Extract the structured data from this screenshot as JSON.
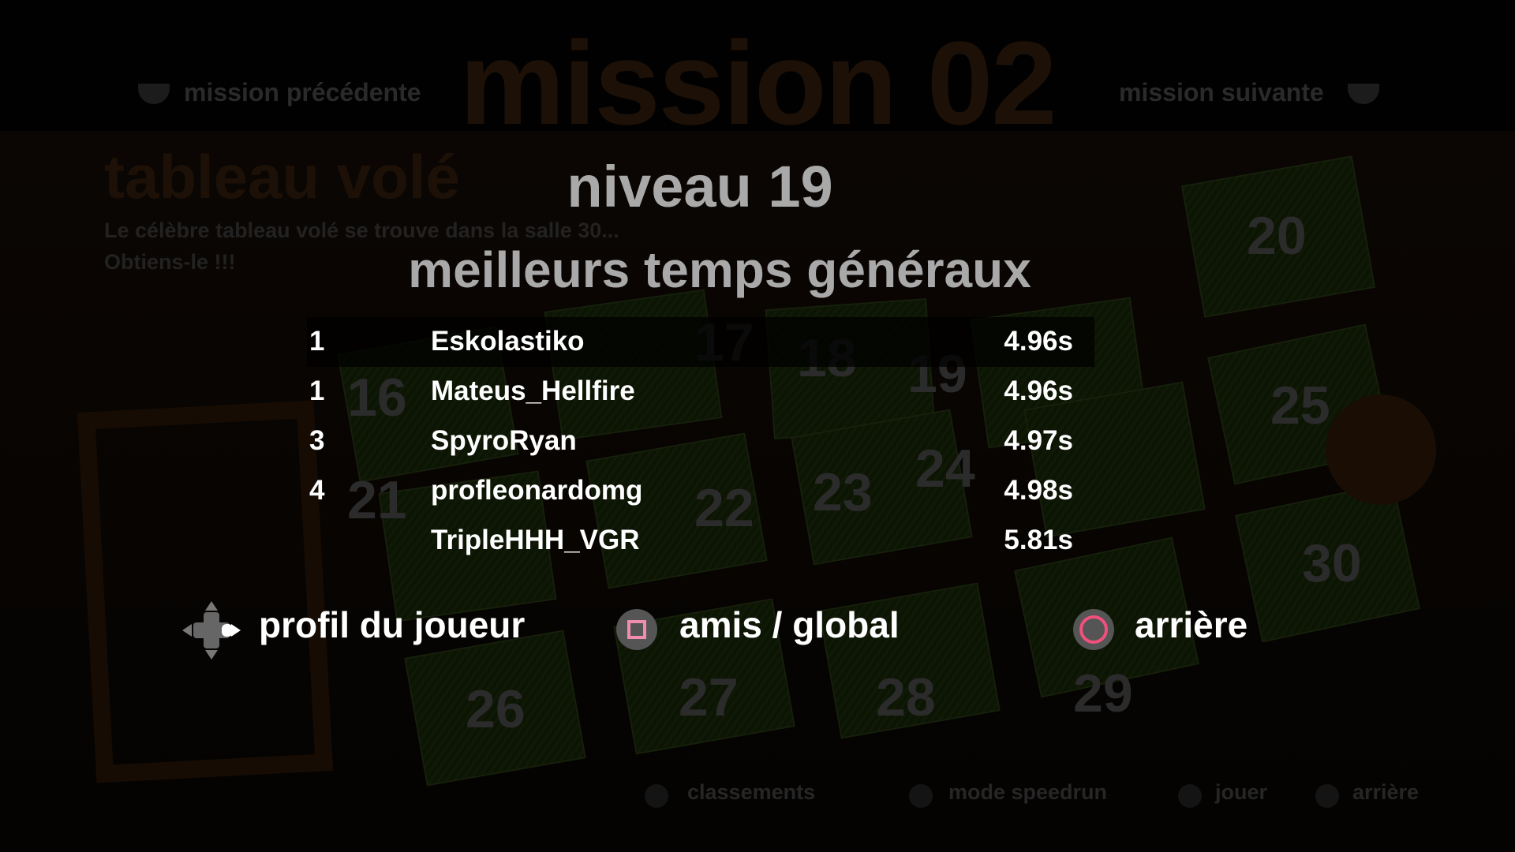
{
  "header": {
    "mission_title": "mission 02",
    "prev_label": "mission précédente",
    "next_label": "mission suivante"
  },
  "mission": {
    "name": "tableau volé",
    "description_line1": "Le célèbre tableau volé se trouve dans la salle 30...",
    "description_line2": "Obtiens-le !!!"
  },
  "levels": [
    "16",
    "17",
    "18",
    "19",
    "20",
    "21",
    "22",
    "23",
    "24",
    "25",
    "26",
    "27",
    "28",
    "29",
    "30"
  ],
  "leaderboard": {
    "title": "niveau 19",
    "subtitle": "meilleurs temps généraux",
    "rows": [
      {
        "rank": "1",
        "name": "Eskolastiko",
        "time": "4.96s",
        "selected": true
      },
      {
        "rank": "1",
        "name": "Mateus_Hellfire",
        "time": "4.96s"
      },
      {
        "rank": "3",
        "name": "SpyroRyan",
        "time": "4.97s"
      },
      {
        "rank": "4",
        "name": "profleonardomg",
        "time": "4.98s"
      },
      {
        "rank": "",
        "name": "TripleHHH_VGR",
        "time": "5.81s"
      }
    ]
  },
  "controls": {
    "profile": "profil du joueur",
    "friends_global": "amis / global",
    "back": "arrière"
  },
  "hints": {
    "rankings": "classements",
    "speedrun": "mode speedrun",
    "play": "jouer",
    "back": "arrière"
  },
  "colors": {
    "square": "#f08cb0",
    "circle": "#f0507c",
    "title_gray": "#a9a9a9",
    "mission_brown": "#1d1107"
  }
}
